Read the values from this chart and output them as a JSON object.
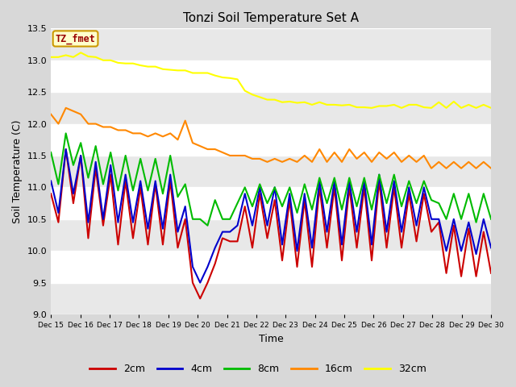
{
  "title": "Tonzi Soil Temperature Set A",
  "xlabel": "Time",
  "ylabel": "Soil Temperature (C)",
  "ylim": [
    9.0,
    13.5
  ],
  "background_color": "#d8d8d8",
  "plot_bg_color": "#ffffff",
  "stripe_color": "#e8e8e8",
  "grid_color": "#cccccc",
  "label_box_text": "TZ_fmet",
  "label_box_color": "#ffffcc",
  "label_box_border": "#cc9900",
  "label_text_color": "#990000",
  "tick_labels": [
    "Dec 15",
    "Dec 16",
    "Dec 17",
    "Dec 18",
    "Dec 19",
    "Dec 20",
    "Dec 21",
    "Dec 22",
    "Dec 23",
    "Dec 24",
    "Dec 25",
    "Dec 26",
    "Dec 27",
    "Dec 28",
    "Dec 29",
    "Dec 30"
  ],
  "yticks": [
    9.0,
    9.5,
    10.0,
    10.5,
    11.0,
    11.5,
    12.0,
    12.5,
    13.0,
    13.5
  ],
  "colors": {
    "2cm": "#cc0000",
    "4cm": "#0000cc",
    "8cm": "#00bb00",
    "16cm": "#ff8800",
    "32cm": "#ffff00"
  },
  "series": {
    "2cm": [
      10.9,
      10.45,
      11.6,
      10.75,
      11.5,
      10.2,
      11.3,
      10.4,
      11.2,
      10.1,
      11.1,
      10.2,
      11.0,
      10.1,
      11.05,
      10.1,
      11.1,
      10.05,
      10.5,
      9.5,
      9.25,
      9.5,
      9.8,
      10.2,
      10.15,
      10.15,
      10.7,
      10.05,
      10.9,
      10.2,
      10.8,
      9.85,
      10.8,
      9.75,
      10.8,
      9.75,
      11.0,
      10.05,
      11.0,
      9.85,
      11.0,
      10.05,
      11.0,
      9.85,
      11.1,
      10.05,
      11.0,
      10.05,
      10.9,
      10.15,
      10.9,
      10.3,
      10.45,
      9.65,
      10.4,
      9.6,
      10.35,
      9.6,
      10.3,
      9.65
    ],
    "4cm": [
      11.1,
      10.6,
      11.6,
      10.9,
      11.5,
      10.45,
      11.4,
      10.5,
      11.35,
      10.45,
      11.2,
      10.45,
      11.1,
      10.35,
      11.1,
      10.35,
      11.2,
      10.3,
      10.7,
      9.75,
      9.5,
      9.75,
      10.05,
      10.3,
      10.3,
      10.4,
      10.9,
      10.4,
      11.0,
      10.4,
      11.0,
      10.1,
      10.9,
      10.0,
      10.9,
      10.05,
      11.1,
      10.3,
      11.1,
      10.1,
      11.1,
      10.3,
      11.1,
      10.1,
      11.2,
      10.3,
      11.1,
      10.3,
      11.0,
      10.4,
      11.0,
      10.5,
      10.5,
      10.0,
      10.5,
      10.0,
      10.45,
      9.95,
      10.5,
      10.05
    ],
    "8cm": [
      11.55,
      11.05,
      11.85,
      11.35,
      11.7,
      11.15,
      11.65,
      11.05,
      11.55,
      10.95,
      11.5,
      10.95,
      11.45,
      10.95,
      11.45,
      10.9,
      11.5,
      10.85,
      11.05,
      10.5,
      10.5,
      10.4,
      10.8,
      10.5,
      10.5,
      10.75,
      11.0,
      10.7,
      11.05,
      10.75,
      11.0,
      10.7,
      11.0,
      10.6,
      11.05,
      10.65,
      11.15,
      10.75,
      11.15,
      10.65,
      11.15,
      10.7,
      11.15,
      10.65,
      11.2,
      10.75,
      11.2,
      10.7,
      11.1,
      10.75,
      11.1,
      10.8,
      10.75,
      10.5,
      10.9,
      10.5,
      10.9,
      10.45,
      10.9,
      10.5
    ],
    "16cm": [
      12.15,
      12.0,
      12.25,
      12.2,
      12.15,
      12.0,
      12.0,
      11.95,
      11.95,
      11.9,
      11.9,
      11.85,
      11.85,
      11.8,
      11.85,
      11.8,
      11.85,
      11.75,
      12.05,
      11.7,
      11.65,
      11.6,
      11.6,
      11.55,
      11.5,
      11.5,
      11.5,
      11.45,
      11.45,
      11.4,
      11.45,
      11.4,
      11.45,
      11.4,
      11.5,
      11.4,
      11.6,
      11.4,
      11.55,
      11.4,
      11.6,
      11.45,
      11.55,
      11.4,
      11.55,
      11.45,
      11.55,
      11.4,
      11.5,
      11.4,
      11.5,
      11.3,
      11.4,
      11.3,
      11.4,
      11.3,
      11.4,
      11.3,
      11.4,
      11.3
    ],
    "32cm": [
      13.05,
      13.05,
      13.08,
      13.05,
      13.12,
      13.06,
      13.05,
      13.0,
      13.0,
      12.96,
      12.95,
      12.95,
      12.92,
      12.9,
      12.9,
      12.86,
      12.85,
      12.84,
      12.84,
      12.8,
      12.8,
      12.8,
      12.76,
      12.73,
      12.72,
      12.7,
      12.52,
      12.46,
      12.42,
      12.38,
      12.38,
      12.34,
      12.35,
      12.33,
      12.34,
      12.3,
      12.34,
      12.3,
      12.3,
      12.29,
      12.3,
      12.26,
      12.26,
      12.25,
      12.28,
      12.28,
      12.3,
      12.25,
      12.3,
      12.3,
      12.26,
      12.25,
      12.34,
      12.25,
      12.35,
      12.25,
      12.3,
      12.25,
      12.3,
      12.25
    ]
  }
}
